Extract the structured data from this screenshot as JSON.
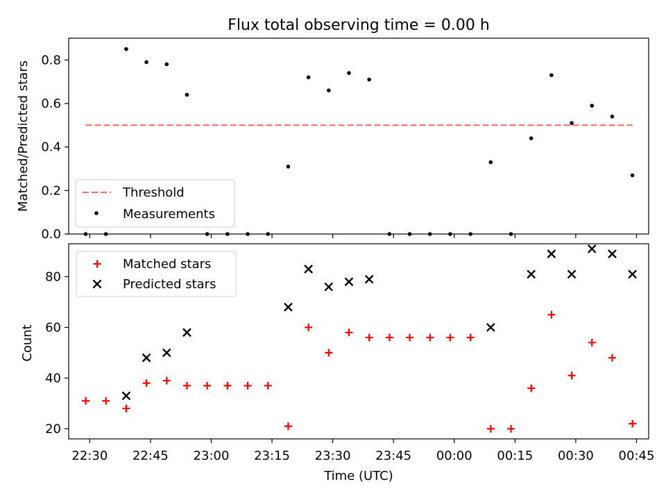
{
  "figure": {
    "title": "Flux total observing time = 0.00 h",
    "xlabel": "Time (UTC)",
    "xticks": [
      "22:30",
      "22:45",
      "23:00",
      "23:15",
      "23:30",
      "23:45",
      "00:00",
      "00:15",
      "00:30",
      "00:45"
    ]
  },
  "chart_data": [
    {
      "type": "scatter",
      "title": "Flux total observing time = 0.00 h",
      "ylabel": "Matched/Predicted stars",
      "ylim": [
        0,
        0.9
      ],
      "yticks": [
        "0.0",
        "0.2",
        "0.4",
        "0.6",
        "0.8"
      ],
      "legend": "lower-left",
      "x": [
        "22:29",
        "22:34",
        "22:39",
        "22:44",
        "22:49",
        "22:54",
        "22:59",
        "23:04",
        "23:09",
        "23:14",
        "23:19",
        "23:24",
        "23:29",
        "23:34",
        "23:39",
        "23:44",
        "23:49",
        "23:54",
        "23:59",
        "00:04",
        "00:09",
        "00:14",
        "00:19",
        "00:24",
        "00:29",
        "00:34",
        "00:39",
        "00:44"
      ],
      "series": [
        {
          "name": "Threshold",
          "style": "dashed-line",
          "color": "#f07070",
          "x_range": [
            "22:29",
            "00:44"
          ],
          "value": 0.5
        },
        {
          "name": "Measurements",
          "style": "dot",
          "color": "#000000",
          "values": [
            0.0,
            0.0,
            0.85,
            0.79,
            0.78,
            0.64,
            0.0,
            0.0,
            0.0,
            0.0,
            0.31,
            0.72,
            0.66,
            0.74,
            0.71,
            0.0,
            0.0,
            0.0,
            0.0,
            0.0,
            0.33,
            0.0,
            0.44,
            0.73,
            0.51,
            0.59,
            0.54,
            0.27
          ]
        }
      ]
    },
    {
      "type": "scatter",
      "ylabel": "Count",
      "ylim": [
        16,
        93
      ],
      "yticks": [
        "20",
        "40",
        "60",
        "80"
      ],
      "legend": "top-left",
      "xlabel": "Time (UTC)",
      "series": [
        {
          "name": "Matched stars",
          "marker": "plus",
          "color": "#ff0000",
          "x": [
            "22:29",
            "22:34",
            "22:39",
            "22:44",
            "22:49",
            "22:54",
            "22:59",
            "23:04",
            "23:09",
            "23:14",
            "23:19",
            "23:24",
            "23:29",
            "23:34",
            "23:39",
            "23:44",
            "23:49",
            "23:54",
            "23:59",
            "00:04",
            "00:09",
            "00:14",
            "00:19",
            "00:24",
            "00:29",
            "00:34",
            "00:39",
            "00:44"
          ],
          "values": [
            31,
            31,
            28,
            38,
            39,
            37,
            37,
            37,
            37,
            37,
            21,
            60,
            50,
            58,
            56,
            56,
            56,
            56,
            56,
            56,
            20,
            20,
            36,
            65,
            41,
            54,
            48,
            22
          ]
        },
        {
          "name": "Predicted stars",
          "marker": "x",
          "color": "#000000",
          "x": [
            "22:39",
            "22:44",
            "22:49",
            "22:54",
            "23:19",
            "23:24",
            "23:29",
            "23:34",
            "23:39",
            "00:09",
            "00:19",
            "00:24",
            "00:29",
            "00:34",
            "00:39",
            "00:44"
          ],
          "values": [
            33,
            48,
            50,
            58,
            68,
            83,
            76,
            78,
            79,
            60,
            81,
            89,
            81,
            91,
            89,
            81
          ]
        }
      ]
    }
  ]
}
